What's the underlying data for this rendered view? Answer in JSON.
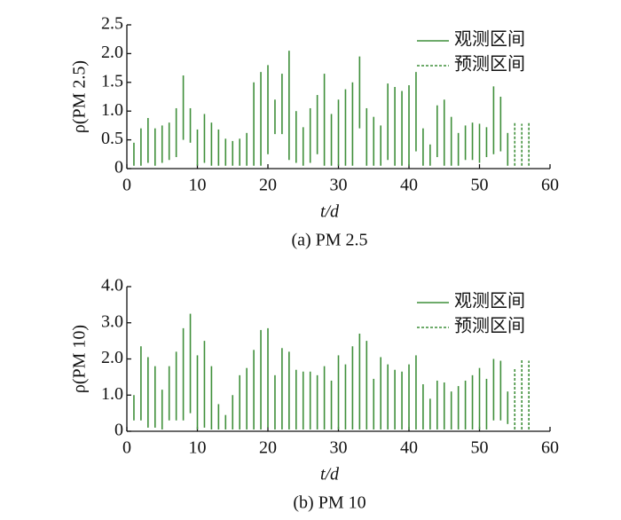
{
  "chart_data": [
    {
      "type": "interval",
      "caption": "(a) PM 2.5",
      "x_label": "t/d",
      "y_label": "ρ(PM 2.5)",
      "xlim": [
        0,
        60
      ],
      "xticks": [
        0,
        10,
        20,
        30,
        40,
        50,
        60
      ],
      "ylim": [
        0,
        2.5
      ],
      "yticks": [
        0,
        0.5,
        {
          "value": 1,
          "label": "1.0"
        },
        1.5,
        {
          "value": 2,
          "label": "2.0"
        },
        2.5
      ],
      "legend": "upper right",
      "series": [
        {
          "name": "观测区间",
          "color": "#3f8f3a",
          "style": "solid",
          "x": [
            1,
            2,
            3,
            4,
            5,
            6,
            7,
            8,
            9,
            10,
            11,
            12,
            13,
            14,
            15,
            16,
            17,
            18,
            19,
            20,
            21,
            22,
            23,
            24,
            25,
            26,
            27,
            28,
            29,
            30,
            31,
            32,
            33,
            34,
            35,
            36,
            37,
            38,
            39,
            40,
            41,
            42,
            43,
            44,
            45,
            46,
            47,
            48,
            49,
            50,
            51,
            52,
            53,
            54
          ],
          "low": [
            0.05,
            0.05,
            0.1,
            0.05,
            0.1,
            0.15,
            0.2,
            0.5,
            0.45,
            0.05,
            0.1,
            0.05,
            0.05,
            0.05,
            0.05,
            0.05,
            0.05,
            0.05,
            0.05,
            0.25,
            0.6,
            0.6,
            0.15,
            0.1,
            0.05,
            0.1,
            0.25,
            0.05,
            0.05,
            0.05,
            0.05,
            0.05,
            0.7,
            0.05,
            0.05,
            0.05,
            0.15,
            0.05,
            0.05,
            0.05,
            0.3,
            0.05,
            0.05,
            0.2,
            0.05,
            0.05,
            0.05,
            0.15,
            0.15,
            0.1,
            0.2,
            0.25,
            0.3,
            0.05
          ],
          "high": [
            0.45,
            0.7,
            0.88,
            0.7,
            0.75,
            0.8,
            1.05,
            1.62,
            1.05,
            0.68,
            0.95,
            0.8,
            0.68,
            0.52,
            0.48,
            0.52,
            0.62,
            1.5,
            1.68,
            1.8,
            1.2,
            1.65,
            2.05,
            1.0,
            0.72,
            1.05,
            1.28,
            1.65,
            0.95,
            1.2,
            1.38,
            1.5,
            1.95,
            1.05,
            0.9,
            0.75,
            1.48,
            1.42,
            1.35,
            1.45,
            1.68,
            0.7,
            0.42,
            1.1,
            1.2,
            0.9,
            0.62,
            0.75,
            0.8,
            0.78,
            0.72,
            1.43,
            1.25,
            0.62
          ]
        },
        {
          "name": "预测区间",
          "color": "#3f8f3a",
          "style": "dashed",
          "x": [
            55,
            56,
            57
          ],
          "low": [
            0.05,
            0.05,
            0.05
          ],
          "high": [
            0.82,
            0.78,
            0.8
          ]
        }
      ]
    },
    {
      "type": "interval",
      "caption": "(b) PM 10",
      "x_label": "t/d",
      "y_label": "ρ(PM 10)",
      "xlim": [
        0,
        60
      ],
      "xticks": [
        0,
        10,
        20,
        30,
        40,
        50,
        60
      ],
      "ylim": [
        0,
        4
      ],
      "yticks": [
        0,
        {
          "value": 1,
          "label": "1.0"
        },
        {
          "value": 2,
          "label": "2.0"
        },
        {
          "value": 3,
          "label": "3.0"
        },
        {
          "value": 4,
          "label": "4.0"
        }
      ],
      "legend": "upper right",
      "series": [
        {
          "name": "观测区间",
          "color": "#3f8f3a",
          "style": "solid",
          "x": [
            1,
            2,
            3,
            4,
            5,
            6,
            7,
            8,
            9,
            10,
            11,
            12,
            13,
            14,
            15,
            16,
            17,
            18,
            19,
            20,
            21,
            22,
            23,
            24,
            25,
            26,
            27,
            28,
            29,
            30,
            31,
            32,
            33,
            34,
            35,
            36,
            37,
            38,
            39,
            40,
            41,
            42,
            43,
            44,
            45,
            46,
            47,
            48,
            49,
            50,
            51,
            52,
            53,
            54
          ],
          "low": [
            0.3,
            0.3,
            0.1,
            0.1,
            0.05,
            0.3,
            0.3,
            0.3,
            0.5,
            0.05,
            0.1,
            0.05,
            0.05,
            0.05,
            0.05,
            0.05,
            0.05,
            0.05,
            0.05,
            0.1,
            0.05,
            0.05,
            0.05,
            0.05,
            0.05,
            0.05,
            0.05,
            0.05,
            0.05,
            0.05,
            0.05,
            0.05,
            0.05,
            0.05,
            0.05,
            0.05,
            0.05,
            0.05,
            0.05,
            0.05,
            0.05,
            0.05,
            0.05,
            0.05,
            0.05,
            0.05,
            0.05,
            0.05,
            0.05,
            0.05,
            0.05,
            0.3,
            0.3,
            0.2
          ],
          "high": [
            1.0,
            2.35,
            2.05,
            1.8,
            1.15,
            1.8,
            2.2,
            2.85,
            3.25,
            2.1,
            2.5,
            1.8,
            0.75,
            0.45,
            1.0,
            1.55,
            1.75,
            2.25,
            2.8,
            2.85,
            1.55,
            2.3,
            2.2,
            1.7,
            1.65,
            1.65,
            1.55,
            1.8,
            1.4,
            2.1,
            1.85,
            2.35,
            2.7,
            2.5,
            1.45,
            2.05,
            1.85,
            1.7,
            1.65,
            1.85,
            2.1,
            1.3,
            0.9,
            1.4,
            1.35,
            1.1,
            1.25,
            1.4,
            1.55,
            1.75,
            1.45,
            2.0,
            1.95,
            1.1
          ]
        },
        {
          "name": "预测区间",
          "color": "#3f8f3a",
          "style": "dashed",
          "x": [
            55,
            56,
            57
          ],
          "low": [
            0.05,
            0.05,
            0.05
          ],
          "high": [
            1.75,
            2.0,
            1.95
          ]
        }
      ]
    }
  ]
}
